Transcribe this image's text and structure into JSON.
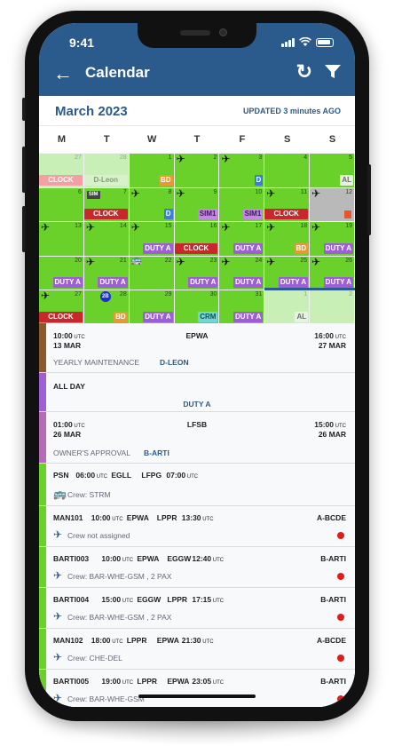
{
  "status": {
    "time": "9:41"
  },
  "appbar": {
    "title": "Calendar"
  },
  "header": {
    "month": "March 2023",
    "updated": "UPDATED 3 minutes AGO"
  },
  "weekdays": [
    "M",
    "T",
    "W",
    "T",
    "F",
    "S",
    "S"
  ],
  "calendar": {
    "rows": [
      [
        {
          "day": "27",
          "dim": true,
          "chips": [
            {
              "text": "CLOCK",
              "kind": "lightclock"
            }
          ]
        },
        {
          "day": "28",
          "dim": true,
          "chips": [
            {
              "text": "D-Leon",
              "kind": "dleon"
            }
          ]
        },
        {
          "day": "1",
          "chips": [
            {
              "text": "BD",
              "kind": "bd"
            }
          ]
        },
        {
          "day": "2",
          "plane": true,
          "chips": []
        },
        {
          "day": "3",
          "plane": true,
          "chips": [
            {
              "text": "D",
              "kind": "d"
            }
          ]
        },
        {
          "day": "4",
          "chips": []
        },
        {
          "day": "5",
          "chips": [
            {
              "text": "AL",
              "kind": "al"
            }
          ]
        }
      ],
      [
        {
          "day": "6",
          "chips": []
        },
        {
          "day": "7",
          "sim": true,
          "chips": [
            {
              "text": "CLOCK",
              "kind": "clock"
            }
          ]
        },
        {
          "day": "8",
          "plane": true,
          "chips": [
            {
              "text": "D",
              "kind": "d"
            }
          ]
        },
        {
          "day": "9",
          "plane": true,
          "chips": [
            {
              "text": "SIM1",
              "kind": "sim"
            }
          ]
        },
        {
          "day": "10",
          "chips": [
            {
              "text": "SIM1",
              "kind": "sim"
            }
          ]
        },
        {
          "day": "11",
          "plane": true,
          "chips": [
            {
              "text": "CLOCK",
              "kind": "clock"
            }
          ]
        },
        {
          "day": "12",
          "plane": true,
          "grey": true,
          "chips": []
        }
      ],
      [
        {
          "day": "13",
          "plane": true,
          "chips": []
        },
        {
          "day": "14",
          "plane": true,
          "chips": []
        },
        {
          "day": "15",
          "plane": true,
          "chips": [
            {
              "text": "DUTY A",
              "kind": "duty"
            }
          ]
        },
        {
          "day": "16",
          "chips": [
            {
              "text": "CLOCK",
              "kind": "clock"
            }
          ]
        },
        {
          "day": "17",
          "plane": true,
          "chips": [
            {
              "text": "DUTY A",
              "kind": "duty"
            }
          ]
        },
        {
          "day": "18",
          "plane": true,
          "chips": [
            {
              "text": "BD",
              "kind": "bd"
            }
          ]
        },
        {
          "day": "19",
          "plane": true,
          "chips": [
            {
              "text": "DUTY A",
              "kind": "duty"
            }
          ]
        }
      ],
      [
        {
          "day": "20",
          "chips": [
            {
              "text": "DUTY A",
              "kind": "duty"
            }
          ]
        },
        {
          "day": "21",
          "plane": true,
          "chips": [
            {
              "text": "DUTY A",
              "kind": "duty"
            }
          ]
        },
        {
          "day": "22",
          "bus": true,
          "chips": []
        },
        {
          "day": "23",
          "plane": true,
          "chips": [
            {
              "text": "DUTY A",
              "kind": "duty"
            }
          ]
        },
        {
          "day": "24",
          "plane": true,
          "chips": [
            {
              "text": "DUTY A",
              "kind": "duty"
            }
          ]
        },
        {
          "day": "25",
          "plane": true,
          "chips": [
            {
              "text": "DUTY A",
              "kind": "duty"
            }
          ]
        },
        {
          "day": "26",
          "plane": true,
          "chips": [
            {
              "text": "DUTY A",
              "kind": "duty"
            }
          ]
        }
      ],
      [
        {
          "day": "27",
          "plane": true,
          "chips": [
            {
              "text": "CLOCK",
              "kind": "clock"
            }
          ]
        },
        {
          "day": "28",
          "badge": "2B",
          "chips": [
            {
              "text": "BD",
              "kind": "bd"
            }
          ]
        },
        {
          "day": "29",
          "chips": [
            {
              "text": "DUTY A",
              "kind": "duty"
            }
          ]
        },
        {
          "day": "30",
          "chips": [
            {
              "text": "CRM",
              "kind": "crm"
            }
          ]
        },
        {
          "day": "31",
          "chips": [
            {
              "text": "DUTY A",
              "kind": "duty"
            }
          ]
        },
        {
          "day": "1",
          "dim": true,
          "chips": [
            {
              "text": "AL",
              "kind": "al"
            }
          ]
        },
        {
          "day": "2",
          "dim": true,
          "chips": []
        }
      ]
    ]
  },
  "events": [
    {
      "color": "#8b5a2b",
      "start_time": "10:00",
      "start_date": "13 MAR",
      "place": "EPWA",
      "end_time": "16:00",
      "end_date": "27 MAR",
      "category": "YEARLY MAINTENANCE",
      "ref": "D-LEON",
      "utc": "UTC"
    },
    {
      "color": "#9e5fd6",
      "label": "ALL DAY",
      "center": "DUTY A"
    },
    {
      "color": "#b56bb8",
      "start_time": "01:00",
      "start_date": "26 MAR",
      "place": "LFSB",
      "end_time": "15:00",
      "end_date": "26 MAR",
      "category": "OWNER'S APPROVAL",
      "ref": "B-ARTI",
      "utc": "UTC"
    },
    {
      "color": "#6ad02a",
      "code": "PSN",
      "dep_time": "06:00",
      "dep": "EGLL",
      "arr": "LFPG",
      "arr_time": "07:00",
      "crew": "Crew: STRM",
      "utc": "UTC",
      "icon": "bus-icon"
    },
    {
      "color": "#6ad02a",
      "code": "MAN101",
      "dep_time": "10:00",
      "dep": "EPWA",
      "arr": "LPPR",
      "arr_time": "13:30",
      "reg": "A-BCDE",
      "crew": "Crew not assigned",
      "utc": "UTC",
      "icon": "plane-icon"
    },
    {
      "color": "#6ad02a",
      "code": "BARTI003",
      "dep_time": "10:00",
      "dep": "EPWA",
      "arr": "EGGW",
      "arr_time": "12:40",
      "reg": "B-ARTI",
      "crew": "Crew: BAR-WHE-GSM , 2 PAX",
      "utc": "UTC",
      "icon": "plane-icon"
    },
    {
      "color": "#6ad02a",
      "code": "BARTI004",
      "dep_time": "15:00",
      "dep": "EGGW",
      "arr": "LPPR",
      "arr_time": "17:15",
      "reg": "B-ARTI",
      "crew": "Crew: BAR-WHE-GSM , 2 PAX",
      "utc": "UTC",
      "icon": "plane-icon"
    },
    {
      "color": "#6ad02a",
      "code": "MAN102",
      "dep_time": "18:00",
      "dep": "LPPR",
      "arr": "EPWA",
      "arr_time": "21:30",
      "reg": "A-BCDE",
      "crew": "Crew: CHE-DEL",
      "utc": "UTC",
      "icon": "plane-icon"
    },
    {
      "color": "#6ad02a",
      "code": "BARTI005",
      "dep_time": "19:00",
      "dep": "LPPR",
      "arr": "EPWA",
      "arr_time": "23:05",
      "reg": "B-ARTI",
      "crew": "Crew: BAR-WHE-GSM",
      "utc": "UTC",
      "icon": "plane-icon"
    }
  ]
}
